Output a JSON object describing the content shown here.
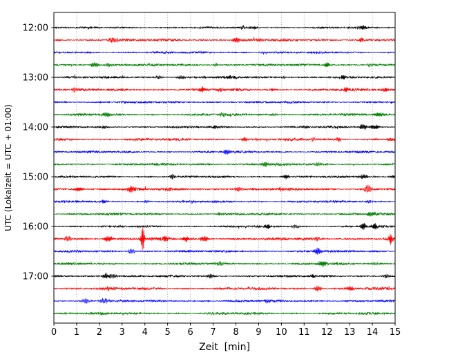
{
  "figure": {
    "background": "#ffffff"
  },
  "chart_data": {
    "type": "line",
    "subtype": "helicorder-seismogram",
    "title": "",
    "xlabel": "Zeit  [min]",
    "ylabel": "UTC (Lokalzeit = UTC + 01:00)",
    "xlim": [
      0,
      15
    ],
    "minutes_per_row": 15,
    "x_ticks": [
      "0",
      "1",
      "2",
      "3",
      "4",
      "5",
      "6",
      "7",
      "8",
      "9",
      "10",
      "11",
      "12",
      "13",
      "14",
      "15"
    ],
    "y_tick_labels": [
      "12:00",
      "13:00",
      "14:00",
      "15:00",
      "16:00",
      "17:00"
    ],
    "grid": {
      "vertical": true,
      "style": "dotted"
    },
    "legend": "none",
    "colors": {
      "black": "#000000",
      "red": "#ff0000",
      "blue": "#0000ff",
      "green": "#008000",
      "grid": "#999999",
      "frame": "#000000"
    },
    "rows": [
      {
        "time": "12:00",
        "label": "12:00",
        "color": "black",
        "noise": 1.6,
        "events": [
          {
            "t": 1.5,
            "a": 1.5
          },
          {
            "t": 8.3,
            "a": 2.5
          },
          {
            "t": 8.8,
            "a": 2
          },
          {
            "t": 13.6,
            "a": 3.5
          }
        ]
      },
      {
        "time": "12:15",
        "label": "",
        "color": "red",
        "noise": 2.2,
        "events": [
          {
            "t": 2.6,
            "a": 4.5
          },
          {
            "t": 5.2,
            "a": 2
          },
          {
            "t": 8.0,
            "a": 5
          },
          {
            "t": 9.0,
            "a": 2.5
          },
          {
            "t": 13.5,
            "a": 4.5
          }
        ]
      },
      {
        "time": "12:30",
        "label": "",
        "color": "blue",
        "noise": 1.8,
        "events": [
          {
            "t": 9.2,
            "a": 2
          }
        ]
      },
      {
        "time": "12:45",
        "label": "",
        "color": "green",
        "noise": 2.0,
        "events": [
          {
            "t": 1.8,
            "a": 4.5
          },
          {
            "t": 2.4,
            "a": 3.5
          },
          {
            "t": 7.1,
            "a": 2.5
          },
          {
            "t": 12.0,
            "a": 4.5
          },
          {
            "t": 13.9,
            "a": 3
          }
        ]
      },
      {
        "time": "13:00",
        "label": "13:00",
        "color": "black",
        "noise": 1.8,
        "events": [
          {
            "t": 4.6,
            "a": 2.5
          },
          {
            "t": 5.6,
            "a": 2.5
          },
          {
            "t": 6.6,
            "a": 2.5
          },
          {
            "t": 7.8,
            "a": 2.5
          },
          {
            "t": 10.1,
            "a": 2
          },
          {
            "t": 12.7,
            "a": 3.5
          }
        ]
      },
      {
        "time": "13:15",
        "label": "",
        "color": "red",
        "noise": 2.2,
        "events": [
          {
            "t": 0.9,
            "a": 4.5
          },
          {
            "t": 6.5,
            "a": 4.5
          },
          {
            "t": 7.3,
            "a": 2.5
          },
          {
            "t": 9.6,
            "a": 2.5
          },
          {
            "t": 12.8,
            "a": 3.5
          },
          {
            "t": 14.6,
            "a": 3
          }
        ]
      },
      {
        "time": "13:30",
        "label": "",
        "color": "blue",
        "noise": 1.7,
        "events": [
          {
            "t": 3.1,
            "a": 1.8
          }
        ]
      },
      {
        "time": "13:45",
        "label": "",
        "color": "green",
        "noise": 2.0,
        "events": [
          {
            "t": 2.3,
            "a": 4.5
          },
          {
            "t": 7.4,
            "a": 3.5
          },
          {
            "t": 9.7,
            "a": 2.5
          },
          {
            "t": 14.3,
            "a": 3.5
          }
        ]
      },
      {
        "time": "14:00",
        "label": "14:00",
        "color": "black",
        "noise": 1.7,
        "events": [
          {
            "t": 2.2,
            "a": 3.5
          },
          {
            "t": 7.1,
            "a": 2
          },
          {
            "t": 11.1,
            "a": 2
          },
          {
            "t": 13.6,
            "a": 5
          },
          {
            "t": 14.1,
            "a": 4
          }
        ]
      },
      {
        "time": "14:15",
        "label": "",
        "color": "red",
        "noise": 2.2,
        "events": [
          {
            "t": 8.4,
            "a": 4.5
          },
          {
            "t": 11.4,
            "a": 3.5
          },
          {
            "t": 12.5,
            "a": 3.5
          },
          {
            "t": 14.8,
            "a": 2.5
          }
        ]
      },
      {
        "time": "14:30",
        "label": "",
        "color": "blue",
        "noise": 1.8,
        "events": [
          {
            "t": 7.6,
            "a": 4.5
          }
        ]
      },
      {
        "time": "14:45",
        "label": "",
        "color": "green",
        "noise": 2.0,
        "events": [
          {
            "t": 9.3,
            "a": 4.5
          },
          {
            "t": 11.6,
            "a": 3.5
          }
        ]
      },
      {
        "time": "15:00",
        "label": "15:00",
        "color": "black",
        "noise": 1.7,
        "events": [
          {
            "t": 5.2,
            "a": 4.5
          },
          {
            "t": 10.2,
            "a": 3.5
          },
          {
            "t": 13.6,
            "a": 3.5
          },
          {
            "t": 14.9,
            "a": 2.5
          }
        ]
      },
      {
        "time": "15:15",
        "label": "",
        "color": "red",
        "noise": 2.2,
        "events": [
          {
            "t": 1.1,
            "a": 3.5
          },
          {
            "t": 3.4,
            "a": 5
          },
          {
            "t": 5.1,
            "a": 3.5
          },
          {
            "t": 8.1,
            "a": 3.5
          },
          {
            "t": 10.0,
            "a": 2.5
          },
          {
            "t": 13.8,
            "a": 8,
            "w": 0.14
          }
        ]
      },
      {
        "time": "15:30",
        "label": "",
        "color": "blue",
        "noise": 1.8,
        "events": [
          {
            "t": 2.2,
            "a": 2.5
          },
          {
            "t": 4.1,
            "a": 2
          },
          {
            "t": 6.1,
            "a": 2
          },
          {
            "t": 13.9,
            "a": 2.5
          }
        ]
      },
      {
        "time": "15:45",
        "label": "",
        "color": "green",
        "noise": 2.0,
        "events": [
          {
            "t": 7.3,
            "a": 2.5
          },
          {
            "t": 13.9,
            "a": 3.5
          }
        ]
      },
      {
        "time": "16:00",
        "label": "16:00",
        "color": "black",
        "noise": 1.7,
        "events": [
          {
            "t": 9.4,
            "a": 3.5
          },
          {
            "t": 10.6,
            "a": 2.5
          },
          {
            "t": 13.6,
            "a": 6
          },
          {
            "t": 14.1,
            "a": 5
          }
        ]
      },
      {
        "time": "16:15",
        "label": "",
        "color": "red",
        "noise": 2.4,
        "events": [
          {
            "t": 0.6,
            "a": 4.5
          },
          {
            "t": 2.4,
            "a": 5
          },
          {
            "t": 3.9,
            "a": 20,
            "w": 0.08
          },
          {
            "t": 4.9,
            "a": 5
          },
          {
            "t": 5.8,
            "a": 5
          },
          {
            "t": 6.6,
            "a": 4.5
          },
          {
            "t": 11.5,
            "a": 3.5
          },
          {
            "t": 14.8,
            "a": 9,
            "w": 0.1
          }
        ]
      },
      {
        "time": "16:30",
        "label": "",
        "color": "blue",
        "noise": 1.8,
        "events": [
          {
            "t": 3.4,
            "a": 4.5
          },
          {
            "t": 11.6,
            "a": 5
          }
        ]
      },
      {
        "time": "16:45",
        "label": "",
        "color": "green",
        "noise": 2.0,
        "events": [
          {
            "t": 7.3,
            "a": 3.5
          },
          {
            "t": 11.8,
            "a": 5
          },
          {
            "t": 14.1,
            "a": 2.5
          }
        ]
      },
      {
        "time": "17:00",
        "label": "17:00",
        "color": "black",
        "noise": 1.7,
        "events": [
          {
            "t": 2.3,
            "a": 5
          },
          {
            "t": 2.6,
            "a": 4
          },
          {
            "t": 6.9,
            "a": 3.5
          },
          {
            "t": 11.4,
            "a": 3.5
          },
          {
            "t": 14.6,
            "a": 3.5
          }
        ]
      },
      {
        "time": "17:15",
        "label": "",
        "color": "red",
        "noise": 2.2,
        "events": [
          {
            "t": 2.4,
            "a": 3.5
          },
          {
            "t": 11.6,
            "a": 4.5
          },
          {
            "t": 13.0,
            "a": 3.5
          }
        ]
      },
      {
        "time": "17:30",
        "label": "",
        "color": "blue",
        "noise": 1.8,
        "events": [
          {
            "t": 1.4,
            "a": 4.5
          },
          {
            "t": 2.2,
            "a": 4.5
          },
          {
            "t": 9.4,
            "a": 2.5
          }
        ]
      },
      {
        "time": "17:45",
        "label": "",
        "color": "green",
        "noise": 2.0,
        "events": []
      }
    ]
  }
}
